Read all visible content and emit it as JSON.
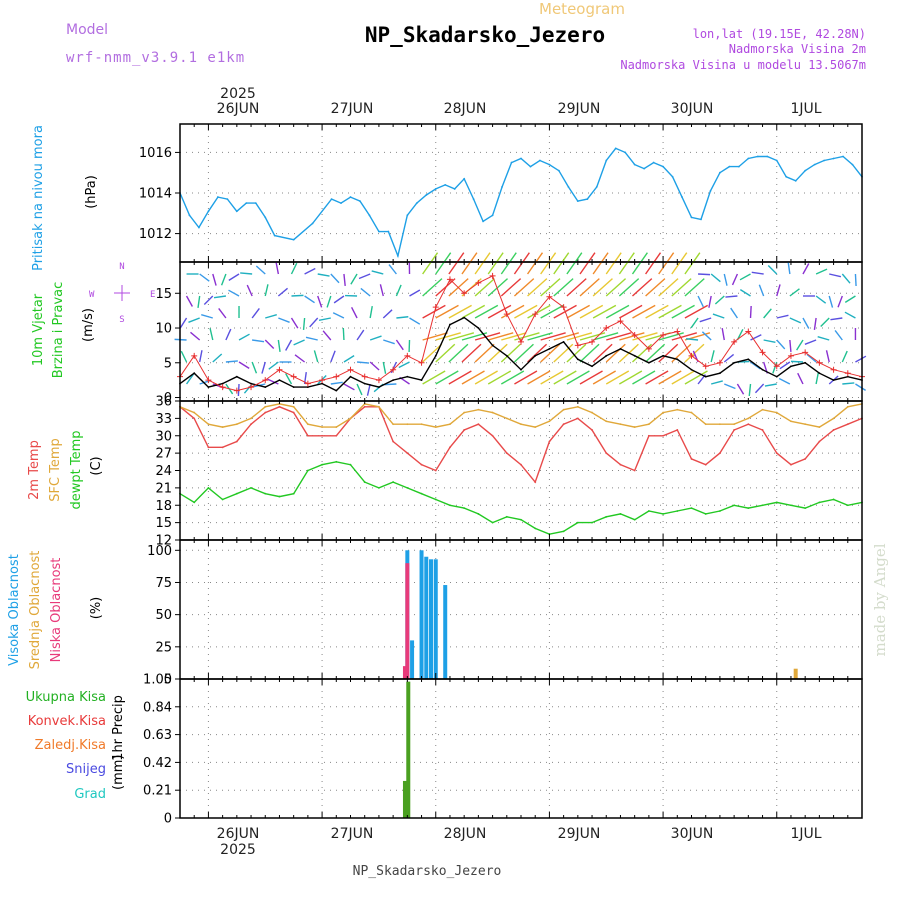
{
  "header": {
    "model_label": "Model",
    "model_name": "wrf-nmm_v3.9.1 e1km",
    "subtitle": "Meteogram",
    "station": "NP_Skadarsko_Jezero",
    "lonlat": "lon,lat (19.15E, 42.28N)",
    "altitude": "Nadmorska Visina 2m",
    "model_altitude": "Nadmorska Visina u modelu 13.5067m"
  },
  "footer": {
    "station": "NP_Skadarsko_Jezero",
    "credit": "made by Angel"
  },
  "time_axis": {
    "year": "2025",
    "days": [
      "26JUN",
      "27JUN",
      "28JUN",
      "29JUN",
      "30JUN",
      "1JUL"
    ],
    "start_hour": -6,
    "end_hour": 138
  },
  "chart_data": [
    {
      "type": "line",
      "panel": "pressure",
      "ylabel": "Pritisak na nivou mora",
      "unit": "(hPa)",
      "ylim": [
        1010.6,
        1017.4
      ],
      "yticks": [
        1012,
        1014,
        1016
      ],
      "grid": true,
      "series": [
        {
          "color": "#1ea0e6",
          "x": [
            -6,
            -4,
            -2,
            0,
            2,
            4,
            6,
            8,
            10,
            12,
            14,
            18,
            22,
            26,
            28,
            30,
            32,
            34,
            36,
            38,
            40,
            42,
            44,
            46,
            48,
            50,
            52,
            54,
            56,
            58,
            60,
            62,
            64,
            66,
            68,
            70,
            72,
            74,
            76,
            78,
            80,
            82,
            84,
            86,
            88,
            90,
            92,
            94,
            96,
            98,
            100,
            102,
            104,
            106,
            108,
            110,
            112,
            114,
            116,
            118,
            120,
            122,
            124,
            126,
            128,
            130,
            132,
            134,
            136,
            138
          ],
          "values": [
            1014.0,
            1012.9,
            1012.3,
            1013.1,
            1013.8,
            1013.7,
            1013.1,
            1013.5,
            1013.5,
            1012.8,
            1011.9,
            1011.7,
            1012.5,
            1013.7,
            1013.5,
            1013.8,
            1013.6,
            1012.9,
            1012.1,
            1012.1,
            1010.9,
            1012.9,
            1013.5,
            1013.9,
            1014.2,
            1014.4,
            1014.2,
            1014.7,
            1013.7,
            1012.6,
            1012.9,
            1014.3,
            1015.5,
            1015.7,
            1015.3,
            1015.6,
            1015.4,
            1015.1,
            1014.3,
            1013.6,
            1013.7,
            1014.3,
            1015.6,
            1016.2,
            1016.0,
            1015.4,
            1015.2,
            1015.5,
            1015.3,
            1014.8,
            1013.8,
            1012.8,
            1012.7,
            1014.1,
            1015.0,
            1015.3,
            1015.3,
            1015.7,
            1015.8,
            1015.8,
            1015.6,
            1014.8,
            1014.6,
            1015.1,
            1015.4,
            1015.6,
            1015.7,
            1015.8,
            1015.4,
            1014.8
          ]
        }
      ]
    },
    {
      "type": "line",
      "panel": "wind",
      "ylabel": [
        "10m Vjetar",
        "Brzina i Pravac"
      ],
      "unit": "(m/s)",
      "ylim": [
        -0.5,
        19.5
      ],
      "yticks": [
        0,
        5,
        10,
        15
      ],
      "grid": true,
      "compass": {
        "n": "N",
        "e": "E",
        "w": "W",
        "s": "S"
      },
      "series": [
        {
          "kind": "speed",
          "color": "#000000",
          "x": [
            -6,
            -3,
            0,
            3,
            6,
            9,
            12,
            15,
            18,
            21,
            24,
            27,
            30,
            33,
            36,
            39,
            42,
            45,
            48,
            51,
            54,
            57,
            60,
            63,
            66,
            69,
            72,
            75,
            78,
            81,
            84,
            87,
            90,
            93,
            96,
            99,
            102,
            105,
            108,
            111,
            114,
            117,
            120,
            123,
            126,
            129,
            132,
            135,
            138
          ],
          "values": [
            2.0,
            3.5,
            1.5,
            2.0,
            3.0,
            2.0,
            1.5,
            2.5,
            1.5,
            1.5,
            2.0,
            1.0,
            3.0,
            2.0,
            1.5,
            2.5,
            3.0,
            2.5,
            6.0,
            10.5,
            11.5,
            10.0,
            7.5,
            6.0,
            4.0,
            6.0,
            7.0,
            8.0,
            5.5,
            4.5,
            6.0,
            7.0,
            6.0,
            5.0,
            6.0,
            5.5,
            4.0,
            3.0,
            3.5,
            5.0,
            5.5,
            4.0,
            3.0,
            4.5,
            5.0,
            3.5,
            2.5,
            3.0,
            2.5
          ]
        },
        {
          "kind": "gust",
          "color": "#e83030",
          "x": [
            -6,
            -3,
            0,
            3,
            6,
            9,
            12,
            15,
            18,
            21,
            24,
            27,
            30,
            33,
            36,
            39,
            42,
            45,
            48,
            51,
            54,
            57,
            60,
            63,
            66,
            69,
            72,
            75,
            78,
            81,
            84,
            87,
            90,
            93,
            96,
            99,
            102,
            105,
            108,
            111,
            114,
            117,
            120,
            123,
            126,
            129,
            132,
            135,
            138
          ],
          "values": [
            3.0,
            6.0,
            2.5,
            1.5,
            1.0,
            1.5,
            2.5,
            4.0,
            3.0,
            2.0,
            2.5,
            3.0,
            4.0,
            3.0,
            2.5,
            4.0,
            6.0,
            5.0,
            13.0,
            17.0,
            15.0,
            16.5,
            17.5,
            12.0,
            8.0,
            12.0,
            14.5,
            13.0,
            7.5,
            8.0,
            10.0,
            11.0,
            9.0,
            7.0,
            9.0,
            9.5,
            6.0,
            4.5,
            5.0,
            8.0,
            9.5,
            6.5,
            4.5,
            6.0,
            6.5,
            5.0,
            4.0,
            3.5,
            3.0
          ]
        }
      ]
    },
    {
      "type": "line",
      "panel": "temperature",
      "ylabel": [
        "2m Temp",
        "SFC Temp",
        "dewpt Temp"
      ],
      "unit": "(C)",
      "ylim": [
        12,
        36
      ],
      "yticks": [
        12,
        15,
        18,
        21,
        24,
        27,
        30,
        33,
        36
      ],
      "grid": true,
      "series": [
        {
          "name": "2m Temp",
          "color": "#e84a4a",
          "x": [
            -6,
            -3,
            0,
            3,
            6,
            9,
            12,
            15,
            18,
            21,
            24,
            27,
            30,
            33,
            36,
            39,
            42,
            45,
            48,
            51,
            54,
            57,
            60,
            63,
            66,
            69,
            72,
            75,
            78,
            81,
            84,
            87,
            90,
            93,
            96,
            99,
            102,
            105,
            108,
            111,
            114,
            117,
            120,
            123,
            126,
            129,
            132,
            135,
            138
          ],
          "values": [
            35,
            33,
            28,
            28,
            29,
            32,
            34,
            35,
            34,
            30,
            30,
            30,
            33,
            35,
            35,
            29,
            27,
            25,
            24,
            28,
            31,
            32,
            30,
            27,
            25,
            22,
            29,
            32,
            33,
            31,
            27,
            25,
            24,
            30,
            30,
            31,
            26,
            25,
            27,
            31,
            32,
            31,
            27,
            25,
            26,
            29,
            31,
            32,
            33
          ]
        },
        {
          "name": "SFC Temp",
          "color": "#e0a83a",
          "x": [
            -6,
            -3,
            0,
            3,
            6,
            9,
            12,
            15,
            18,
            21,
            24,
            27,
            30,
            33,
            36,
            39,
            42,
            45,
            48,
            51,
            54,
            57,
            60,
            63,
            66,
            69,
            72,
            75,
            78,
            81,
            84,
            87,
            90,
            93,
            96,
            99,
            102,
            105,
            108,
            111,
            114,
            117,
            120,
            123,
            126,
            129,
            132,
            135,
            138
          ],
          "values": [
            35,
            34,
            32,
            31.5,
            32,
            33,
            35,
            35.5,
            35,
            32,
            31.5,
            31.5,
            33,
            35.5,
            35,
            32,
            32,
            32,
            31.5,
            32,
            34,
            34.5,
            34,
            33,
            32,
            31.5,
            32.5,
            34.5,
            35,
            34,
            32.5,
            32,
            31.5,
            32,
            34,
            34.5,
            34,
            32,
            32,
            32,
            33,
            34.5,
            34,
            32.5,
            32,
            31.5,
            33,
            35,
            35.5
          ]
        },
        {
          "name": "dewpt Temp",
          "color": "#22c822",
          "x": [
            -6,
            -3,
            0,
            3,
            6,
            9,
            12,
            15,
            18,
            21,
            24,
            27,
            30,
            33,
            36,
            39,
            42,
            45,
            48,
            51,
            54,
            57,
            60,
            63,
            66,
            69,
            72,
            75,
            78,
            81,
            84,
            87,
            90,
            93,
            96,
            99,
            102,
            105,
            108,
            111,
            114,
            117,
            120,
            123,
            126,
            129,
            132,
            135,
            138
          ],
          "values": [
            20,
            18.5,
            21,
            19,
            20,
            21,
            20,
            19.5,
            20,
            24,
            25,
            25.5,
            25,
            22,
            21,
            22,
            21,
            20,
            19,
            18,
            17.5,
            16.5,
            15,
            16,
            15.5,
            14,
            13,
            13.5,
            15,
            15,
            16,
            16.5,
            15.5,
            17,
            16.5,
            17,
            17.5,
            16.5,
            17,
            18,
            17.5,
            18,
            18.5,
            18,
            17.5,
            18.5,
            19,
            18,
            18.5
          ]
        }
      ]
    },
    {
      "type": "bar",
      "panel": "cloud",
      "ylabel": [
        "Visoka Oblacnost",
        "Srednja Oblacnost",
        "Niska Oblacnost"
      ],
      "unit": "(%)",
      "ylim": [
        0,
        108
      ],
      "yticks": [
        0,
        25,
        50,
        75,
        100
      ],
      "grid": true,
      "series": [
        {
          "name": "Visoka Oblacnost",
          "color": "#1ea0e6",
          "x": [
            42,
            43,
            45,
            46,
            47,
            48,
            50,
            56
          ],
          "values": [
            100,
            30,
            100,
            95,
            93,
            93,
            73,
            0
          ]
        },
        {
          "name": "Srednja Oblacnost",
          "color": "#e0a83a",
          "x": [
            124
          ],
          "values": [
            8
          ]
        },
        {
          "name": "Niska Oblacnost",
          "color": "#e83a7a",
          "x": [
            41.5,
            42
          ],
          "values": [
            10,
            90
          ]
        }
      ]
    },
    {
      "type": "bar",
      "panel": "precip",
      "ylabel": "1hr Precip",
      "unit": "(mm)",
      "legend": [
        {
          "label": "Ukupna Kisa",
          "color": "#22b022"
        },
        {
          "label": "Konvek.Kisa",
          "color": "#e83a3a"
        },
        {
          "label": "Zaledj.Kisa",
          "color": "#f07a2a"
        },
        {
          "label": "Snijeg",
          "color": "#4a4ae0"
        },
        {
          "label": "Grad",
          "color": "#20c8c0"
        }
      ],
      "ylim": [
        0,
        1.05
      ],
      "yticks": [
        0,
        0.21,
        0.42,
        0.63,
        0.84,
        1.05
      ],
      "grid": true,
      "series": [
        {
          "name": "Ukupna Kisa",
          "color": "#4aa020",
          "x": [
            41.5,
            42.2
          ],
          "values": [
            0.28,
            1.03
          ]
        }
      ]
    }
  ]
}
